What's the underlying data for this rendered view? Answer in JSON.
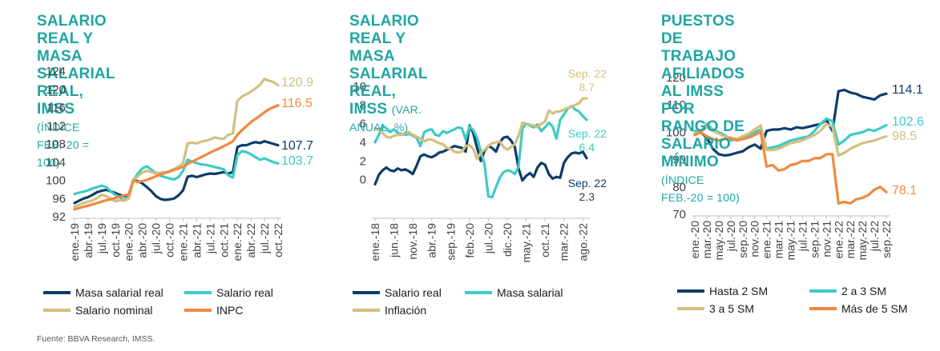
{
  "colors": {
    "navy": "#0b3c6b",
    "aqua": "#3dcbc6",
    "sand": "#d4bf7e",
    "orange": "#f0893e",
    "title": "#1fa5a3"
  },
  "source": "Fuente: BBVA Research, IMSS.",
  "chart_data": [
    {
      "type": "line",
      "title_lines": [
        "SALARIO REAL Y MASA",
        "SALARIAL REAL, IMSS"
      ],
      "subtitle": "(ÍNDICE FEB.-20 = 100)",
      "ylim": [
        92,
        124
      ],
      "yticks": [
        92,
        96,
        100,
        104,
        108,
        112,
        116,
        120,
        124
      ],
      "x_labels": [
        "ene.-19",
        "abr.-19",
        "jul.-19",
        "oct.-19",
        "ene.-20",
        "abr.-20",
        "jul.-20",
        "oct.-20",
        "ene.-21",
        "abr.-21",
        "jul.-21",
        "oct.-21",
        "ene.-22",
        "abr.-22",
        "jul.-22",
        "oct.-22"
      ],
      "x_label_index": [
        0,
        3,
        6,
        9,
        12,
        15,
        18,
        21,
        24,
        27,
        30,
        33,
        36,
        39,
        42,
        45
      ],
      "n_points": 46,
      "series": [
        {
          "name": "Masa salarial real",
          "color": "#0b3c6b",
          "values": [
            95,
            95.5,
            96,
            96.3,
            96.8,
            97.4,
            97.7,
            97.9,
            97.6,
            97.2,
            96.8,
            96.5,
            96.7,
            100,
            99.8,
            99.3,
            98.5,
            97.6,
            96.5,
            95.9,
            95.7,
            95.8,
            96.0,
            96.7,
            97.8,
            100.8,
            101,
            100.7,
            101.0,
            101.3,
            101.5,
            101.4,
            101.6,
            101.8,
            101.5,
            101.8,
            107.3,
            107.7,
            107.7,
            108.1,
            108.4,
            108.2,
            108.6,
            108.3,
            108.0,
            107.7
          ],
          "end_label": "107.7"
        },
        {
          "name": "Salario real",
          "color": "#3dcbc6",
          "values": [
            97,
            97.3,
            97.5,
            97.8,
            98.2,
            98.5,
            98.8,
            98.5,
            97.6,
            96.8,
            96.3,
            95.6,
            96.4,
            100,
            101.5,
            102.6,
            103.1,
            102.3,
            101.6,
            101.0,
            100.7,
            100.4,
            100.2,
            100.7,
            102.1,
            104.5,
            104.1,
            103.8,
            103.5,
            103.4,
            103.2,
            102.9,
            102.7,
            102.4,
            101.1,
            100.6,
            105.5,
            106.4,
            106.2,
            105.7,
            105.1,
            104.5,
            104.8,
            104.4,
            104.0,
            103.7
          ],
          "end_label": "103.7"
        },
        {
          "name": "Salario nominal",
          "color": "#d4bf7e",
          "values": [
            94.2,
            94.6,
            95.0,
            95.3,
            95.6,
            96.1,
            96.8,
            96.5,
            96.0,
            95.4,
            95.6,
            95.5,
            96.0,
            100,
            100.9,
            101.7,
            102.1,
            101.8,
            101.5,
            101.7,
            101.8,
            102.0,
            102.5,
            103.0,
            103.8,
            108.1,
            108.3,
            108.1,
            108.5,
            108.7,
            109.0,
            109.4,
            109.2,
            109.1,
            110.0,
            110.3,
            117.5,
            118.4,
            118.9,
            119.5,
            120.2,
            121.0,
            122.3,
            121.9,
            121.6,
            120.9
          ],
          "end_label": "120.9"
        },
        {
          "name": "INPC",
          "color": "#f0893e",
          "values": [
            93.6,
            93.9,
            94.2,
            94.4,
            94.7,
            95.0,
            95.3,
            95.6,
            95.8,
            96.1,
            96.4,
            96.7,
            96.9,
            100,
            99.6,
            99.8,
            100.1,
            100.5,
            100.9,
            101.3,
            101.6,
            101.9,
            102.3,
            102.6,
            103.0,
            103.6,
            104.1,
            104.6,
            105.1,
            105.6,
            106.1,
            106.6,
            107.0,
            107.5,
            108.0,
            108.6,
            110.0,
            111.0,
            111.9,
            112.8,
            113.5,
            114.2,
            115.0,
            115.6,
            116.1,
            116.5
          ],
          "end_label": "116.5"
        }
      ],
      "legend": [
        "Masa salarial real",
        "Salario real",
        "Salario nominal",
        "INPC"
      ]
    },
    {
      "type": "line",
      "title_lines": [
        "SALARIO REAL Y MASA SALARIAL",
        "REAL, IMSS"
      ],
      "subtitle": "(VAR. ANUAL, %)",
      "ylim": [
        -2,
        10
      ],
      "yticks": [
        0,
        2,
        4,
        6,
        8,
        10
      ],
      "x_labels": [
        "ene.-18",
        "jun.-18",
        "nov.-18",
        "abr.-19",
        "sep.-19",
        "feb.-20",
        "jul.-20",
        "dic.-20",
        "may.-21",
        "oct.-21",
        "mar.-22",
        "ago.-22"
      ],
      "x_label_index": [
        0,
        5,
        10,
        15,
        20,
        25,
        30,
        35,
        40,
        45,
        50,
        55
      ],
      "n_points": 57,
      "series": [
        {
          "name": "Salario real",
          "color": "#0b3c6b",
          "values": [
            -0.5,
            0.5,
            1.0,
            1.3,
            1.0,
            0.9,
            1.2,
            1.0,
            1.1,
            0.9,
            0.6,
            1.5,
            2.5,
            2.7,
            2.5,
            2.4,
            2.6,
            2.9,
            3.0,
            3.2,
            3.4,
            3.6,
            3.5,
            3.4,
            3.0,
            5.8,
            5.0,
            3.4,
            2.0,
            3.1,
            3.6,
            3.4,
            3.0,
            4.0,
            4.5,
            4.6,
            4.2,
            3.5,
            1.2,
            -0.1,
            0.4,
            0.7,
            0.3,
            1.3,
            1.8,
            1.6,
            0.6,
            0.1,
            0.3,
            0.2,
            1.8,
            2.4,
            2.8,
            2.9,
            2.8,
            3.0,
            2.3
          ],
          "end_label": "2.3",
          "annotation": "Sep. 22"
        },
        {
          "name": "Masa salarial",
          "color": "#3dcbc6",
          "values": [
            4.0,
            4.8,
            5.8,
            5.5,
            5.1,
            5.4,
            5.0,
            4.9,
            4.8,
            4.9,
            4.7,
            4.5,
            3.6,
            5.1,
            5.3,
            5.4,
            4.8,
            4.7,
            5.2,
            5.0,
            5.2,
            5.4,
            5.6,
            5.5,
            4.3,
            5.7,
            5.3,
            4.5,
            3.0,
            1.6,
            -1.8,
            -1.9,
            -0.8,
            0.2,
            0.8,
            1.0,
            0.9,
            0.6,
            1.4,
            5.5,
            6.0,
            5.8,
            5.6,
            5.9,
            5.2,
            5.6,
            6.1,
            5.7,
            4.4,
            6.4,
            7.0,
            7.6,
            7.9,
            7.5,
            7.3,
            6.8,
            6.4
          ],
          "end_label": "6.4",
          "annotation": "Sep. 22"
        },
        {
          "name": "Inflación",
          "color": "#d4bf7e",
          "values": [
            5.5,
            5.3,
            5.0,
            4.6,
            4.5,
            4.7,
            4.8,
            4.8,
            5.0,
            5.1,
            4.8,
            4.6,
            4.4,
            4.1,
            4.3,
            4.3,
            4.1,
            3.9,
            3.8,
            3.4,
            3.3,
            3.0,
            2.9,
            3.0,
            3.6,
            3.7,
            3.3,
            2.2,
            2.9,
            3.2,
            3.6,
            3.9,
            4.0,
            4.1,
            3.5,
            3.2,
            3.5,
            3.8,
            4.7,
            6.1,
            6.0,
            5.9,
            5.8,
            5.6,
            6.0,
            6.2,
            7.4,
            7.1,
            7.3,
            7.3,
            7.5,
            7.7,
            7.8,
            8.0,
            8.2,
            8.7,
            8.7
          ],
          "end_label": "8.7",
          "annotation": "Sep. 22"
        }
      ],
      "legend": [
        "Salario real",
        "Masa salarial",
        "Inflación"
      ]
    },
    {
      "type": "line",
      "title_lines": [
        "PUESTOS DE TRABAJO AFILIADOS",
        "AL IMSS POR RANGO DE SALARIO",
        "MÍNIMO"
      ],
      "subtitle": "(ÍNDICE FEB.-20 = 100)",
      "ylim": [
        70,
        120
      ],
      "yticks": [
        70,
        80,
        90,
        100,
        110,
        120
      ],
      "x_labels": [
        "ene.-20",
        "mar.-20",
        "may.-20",
        "jul.-20",
        "sep.-20",
        "nov.-20",
        "ene.-21",
        "mar.-21",
        "may.-21",
        "jul.-21",
        "sep.-21",
        "nov.-21",
        "ene.-22",
        "mar.-22",
        "may.-22",
        "jul.-22",
        "sep.-22"
      ],
      "x_label_index": [
        0,
        2,
        4,
        6,
        8,
        10,
        12,
        14,
        16,
        18,
        20,
        22,
        24,
        26,
        28,
        30,
        32
      ],
      "n_points": 33,
      "series": [
        {
          "name": "Hasta 2 SM",
          "color": "#0b3c6b",
          "values": [
            99.5,
            100,
            98,
            94,
            92,
            91.5,
            91.8,
            92.5,
            93.0,
            94.5,
            95.5,
            94.0,
            100.5,
            101.0,
            101.0,
            101.5,
            101.0,
            101.8,
            101.5,
            102.0,
            102.5,
            103.0,
            104.5,
            100.5,
            115.0,
            115.5,
            114.5,
            114.0,
            113.0,
            112.5,
            112.0,
            113.5,
            114.1
          ],
          "end_label": "114.1"
        },
        {
          "name": "2 a 3 SM",
          "color": "#3dcbc6",
          "values": [
            100.5,
            100,
            103,
            101,
            100,
            99,
            97,
            97.5,
            98,
            99,
            100,
            101,
            94,
            94.5,
            95,
            96,
            97,
            97.5,
            98,
            98.5,
            100.5,
            103,
            105,
            104,
            95.5,
            97,
            99,
            99.5,
            100,
            101,
            100.5,
            101.5,
            102.6
          ],
          "end_label": "102.6"
        },
        {
          "name": "3 a 5 SM",
          "color": "#d4bf7e",
          "values": [
            99.5,
            100,
            102,
            100.5,
            99.5,
            98.5,
            98,
            97.5,
            98.5,
            99.5,
            101,
            102.5,
            93.5,
            93.5,
            94.0,
            95.0,
            96.0,
            96.5,
            97.0,
            98.0,
            99.0,
            100.5,
            103.0,
            102.0,
            91.5,
            92.5,
            94.0,
            95.0,
            96.0,
            96.5,
            97.0,
            97.8,
            98.5
          ],
          "end_label": "98.5"
        },
        {
          "name": "Más de 5 SM",
          "color": "#f0893e",
          "values": [
            99.0,
            100,
            98.5,
            97.5,
            97,
            97.5,
            97.8,
            97,
            97.5,
            98,
            99,
            100,
            87.5,
            88,
            86,
            86.5,
            88,
            88.5,
            89.5,
            89.5,
            90.5,
            90.5,
            92,
            92,
            74,
            74.5,
            74,
            75.5,
            76,
            77,
            79,
            80,
            78.1
          ],
          "end_label": "78.1"
        }
      ],
      "legend": [
        "Hasta 2 SM",
        "2 a 3 SM",
        "3 a 5 SM",
        "Más de 5 SM"
      ]
    }
  ]
}
